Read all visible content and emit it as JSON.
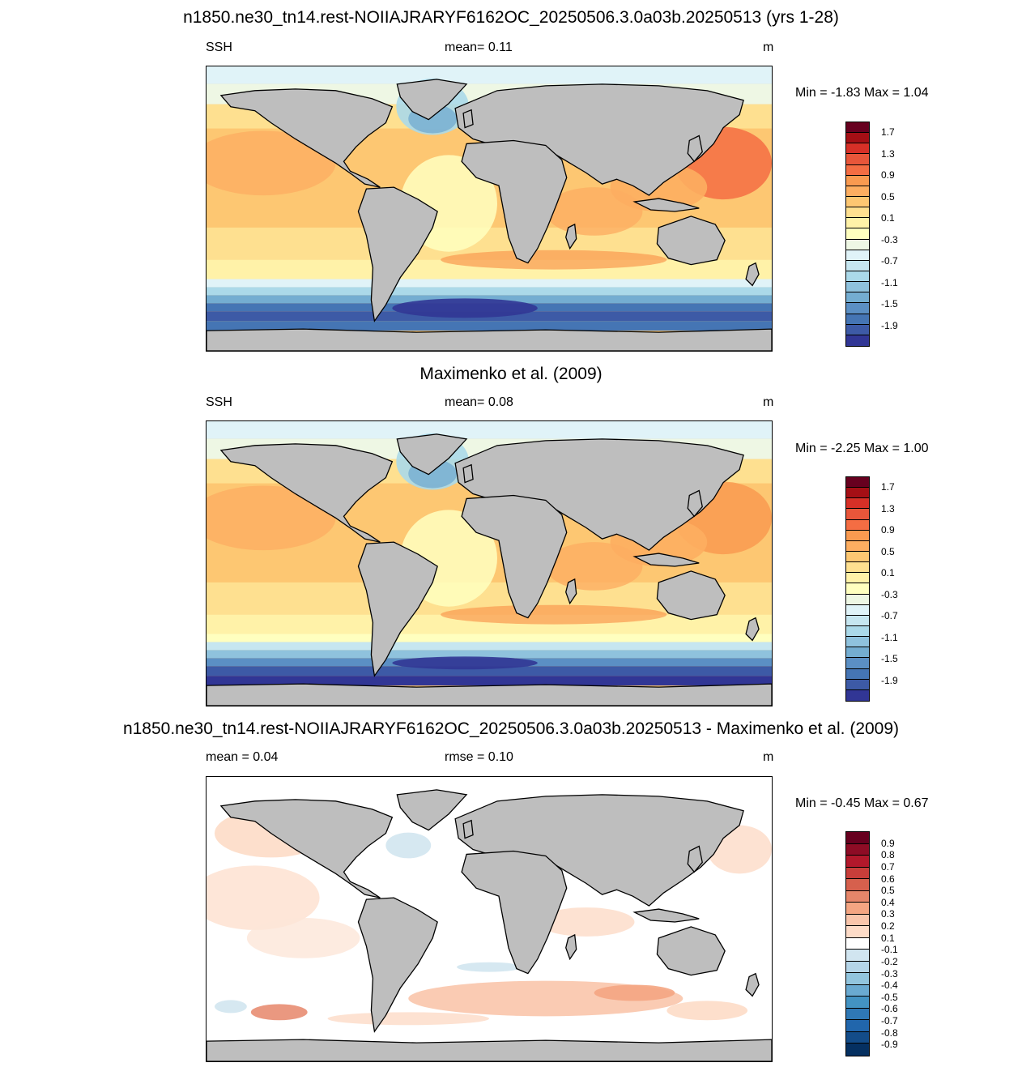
{
  "panels": [
    {
      "title": "n1850.ne30_tn14.rest-NOIIAJRARYF6162OC_20250506.3.0a03b.20250513 (yrs 1-28)",
      "left_label": "SSH",
      "center_label": "mean=   0.11",
      "right_label": "m",
      "minmax": "Min =  -1.83 Max =   1.04",
      "kind": "model",
      "colorbar": {
        "labels": [
          "1.7",
          "1.3",
          "0.9",
          "0.5",
          "0.1",
          "-0.3",
          "-0.7",
          "-1.1",
          "-1.5",
          "-1.9"
        ],
        "colors": [
          "#67001f",
          "#a50f15",
          "#d73027",
          "#e8563a",
          "#f46d43",
          "#f99a50",
          "#fdae61",
          "#fdc772",
          "#fee090",
          "#fff2a8",
          "#ffffbf",
          "#eef7e4",
          "#e0f3f8",
          "#c6e6f0",
          "#abd9e9",
          "#8fc2dd",
          "#74add1",
          "#5b8fc4",
          "#4575b4",
          "#3d5aa6",
          "#313695"
        ]
      }
    },
    {
      "title": "Maximenko et al. (2009)",
      "left_label": "SSH",
      "center_label": "mean=   0.08",
      "right_label": "m",
      "minmax": "Min =  -2.25 Max =   1.00",
      "kind": "obs",
      "colorbar": {
        "labels": [
          "1.7",
          "1.3",
          "0.9",
          "0.5",
          "0.1",
          "-0.3",
          "-0.7",
          "-1.1",
          "-1.5",
          "-1.9"
        ],
        "colors": [
          "#67001f",
          "#a50f15",
          "#d73027",
          "#e8563a",
          "#f46d43",
          "#f99a50",
          "#fdae61",
          "#fdc772",
          "#fee090",
          "#fff2a8",
          "#ffffbf",
          "#eef7e4",
          "#e0f3f8",
          "#c6e6f0",
          "#abd9e9",
          "#8fc2dd",
          "#74add1",
          "#5b8fc4",
          "#4575b4",
          "#3d5aa6",
          "#313695"
        ]
      }
    },
    {
      "title": "n1850.ne30_tn14.rest-NOIIAJRARYF6162OC_20250506.3.0a03b.20250513 - Maximenko et al. (2009)",
      "left_label": "mean =   0.04",
      "center_label": "rmse =   0.10",
      "right_label": "m",
      "minmax": "Min =  -0.45 Max =   0.67",
      "kind": "diff",
      "colorbar": {
        "labels": [
          "0.9",
          "0.8",
          "0.7",
          "0.6",
          "0.5",
          "0.4",
          "0.3",
          "0.2",
          "0.1",
          "-0.1",
          "-0.2",
          "-0.3",
          "-0.4",
          "-0.5",
          "-0.6",
          "-0.7",
          "-0.8",
          "-0.9"
        ],
        "colors": [
          "#67001f",
          "#8e0c25",
          "#b2182b",
          "#c83e3a",
          "#d6604d",
          "#e6866a",
          "#f4a582",
          "#f9c5ab",
          "#fddbc7",
          "#ffffff",
          "#d1e5f0",
          "#b5d5e8",
          "#92c5de",
          "#6aaad1",
          "#4393c3",
          "#2f78b5",
          "#2166ac",
          "#134c89",
          "#053061"
        ]
      }
    }
  ]
}
